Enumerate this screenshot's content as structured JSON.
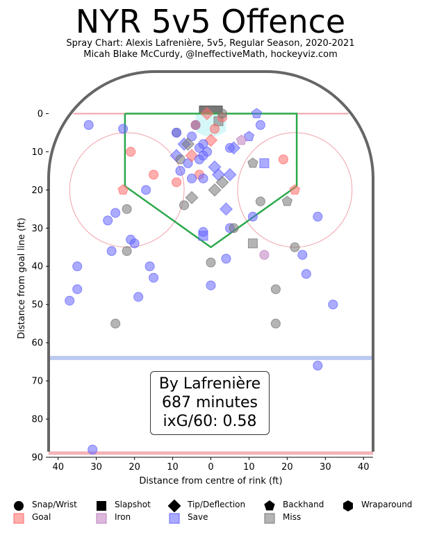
{
  "title": "NYR 5v5 Offence",
  "subtitle_1": "Spray Chart: Alexis Lafrenière, 5v5, Regular Season, 2020-2021",
  "subtitle_2": "Micah Blake McCurdy, @IneffectiveMath, hockeyviz.com",
  "annotation": {
    "line1": "By Lafrenière",
    "line2": "687 minutes",
    "line3": "ixG/60: 0.58"
  },
  "legend": {
    "shapes": [
      {
        "label": "Snap/Wrist",
        "shape": "circle"
      },
      {
        "label": "Slapshot",
        "shape": "square"
      },
      {
        "label": "Tip/Deflection",
        "shape": "diamond"
      },
      {
        "label": "Backhand",
        "shape": "pentagon"
      },
      {
        "label": "Wraparound",
        "shape": "hexagon"
      }
    ],
    "outcomes": [
      {
        "label": "Goal",
        "color": "#ff6b6b"
      },
      {
        "label": "Iron",
        "color": "#c080c0"
      },
      {
        "label": "Save",
        "color": "#6666ff"
      },
      {
        "label": "Miss",
        "color": "#777777"
      }
    ]
  },
  "colors": {
    "goal": "#ff6b6b",
    "iron": "#c080c0",
    "save": "#6666ff",
    "miss": "#777777",
    "slot": "#2aa84a",
    "boards": "#666666",
    "blue_line": "#aabbee",
    "red_line": "#f0a0a8",
    "crease": "#ccf5f5"
  },
  "chart_data": {
    "type": "scatter",
    "xlabel": "Distance from centre of rink (ft)",
    "ylabel": "Distance from goal line (ft)",
    "xlim": [
      42.5,
      -42.5
    ],
    "ylim": [
      90,
      -11
    ],
    "xticks": [
      40,
      30,
      20,
      10,
      0,
      10,
      20,
      30,
      40
    ],
    "yticks": [
      0,
      10,
      20,
      30,
      40,
      50,
      60,
      70,
      80,
      90
    ],
    "points": [
      {
        "x": -2,
        "y": 2,
        "shape": "square",
        "outcome": "miss"
      },
      {
        "x": 1,
        "y": 0,
        "shape": "diamond",
        "outcome": "goal"
      },
      {
        "x": -3,
        "y": 1,
        "shape": "circle",
        "outcome": "goal"
      },
      {
        "x": -1,
        "y": 4,
        "shape": "circle",
        "outcome": "goal"
      },
      {
        "x": 4,
        "y": 3,
        "shape": "circle",
        "outcome": "goal"
      },
      {
        "x": 4,
        "y": 3,
        "shape": "circle",
        "outcome": "miss"
      },
      {
        "x": -3,
        "y": 0,
        "shape": "circle",
        "outcome": "miss"
      },
      {
        "x": -12,
        "y": 0,
        "shape": "pentagon",
        "outcome": "save"
      },
      {
        "x": 32,
        "y": 3,
        "shape": "circle",
        "outcome": "save"
      },
      {
        "x": 23,
        "y": 4,
        "shape": "circle",
        "outcome": "save"
      },
      {
        "x": -13,
        "y": 3,
        "shape": "circle",
        "outcome": "save"
      },
      {
        "x": 9,
        "y": 5,
        "shape": "circle",
        "outcome": "miss"
      },
      {
        "x": 9,
        "y": 5,
        "shape": "circle",
        "outcome": "save"
      },
      {
        "x": 5,
        "y": 6,
        "shape": "circle",
        "outcome": "save"
      },
      {
        "x": 4,
        "y": 3,
        "shape": "circle",
        "outcome": "iron"
      },
      {
        "x": -10,
        "y": 6,
        "shape": "pentagon",
        "outcome": "save"
      },
      {
        "x": -8,
        "y": 7,
        "shape": "pentagon",
        "outcome": "iron"
      },
      {
        "x": 0,
        "y": 7,
        "shape": "diamond",
        "outcome": "goal"
      },
      {
        "x": 7,
        "y": 8,
        "shape": "diamond",
        "outcome": "save"
      },
      {
        "x": 6,
        "y": 8,
        "shape": "diamond",
        "outcome": "miss"
      },
      {
        "x": 2,
        "y": 8,
        "shape": "circle",
        "outcome": "save"
      },
      {
        "x": 3,
        "y": 9,
        "shape": "circle",
        "outcome": "save"
      },
      {
        "x": 1,
        "y": 10,
        "shape": "circle",
        "outcome": "save"
      },
      {
        "x": -5,
        "y": 9,
        "shape": "circle",
        "outcome": "save"
      },
      {
        "x": -6,
        "y": 9,
        "shape": "diamond",
        "outcome": "save"
      },
      {
        "x": -14,
        "y": 13,
        "shape": "square",
        "outcome": "save"
      },
      {
        "x": 21,
        "y": 10,
        "shape": "circle",
        "outcome": "goal"
      },
      {
        "x": 9,
        "y": 11,
        "shape": "diamond",
        "outcome": "save"
      },
      {
        "x": 8,
        "y": 12,
        "shape": "circle",
        "outcome": "miss"
      },
      {
        "x": 6,
        "y": 13,
        "shape": "circle",
        "outcome": "save"
      },
      {
        "x": 5,
        "y": 11,
        "shape": "diamond",
        "outcome": "goal"
      },
      {
        "x": 3,
        "y": 12,
        "shape": "circle",
        "outcome": "save"
      },
      {
        "x": 2,
        "y": 11,
        "shape": "circle",
        "outcome": "save"
      },
      {
        "x": -11,
        "y": 13,
        "shape": "pentagon",
        "outcome": "miss"
      },
      {
        "x": -19,
        "y": 12,
        "shape": "circle",
        "outcome": "goal"
      },
      {
        "x": 15,
        "y": 16,
        "shape": "circle",
        "outcome": "goal"
      },
      {
        "x": 8,
        "y": 15,
        "shape": "circle",
        "outcome": "save"
      },
      {
        "x": 9,
        "y": 18,
        "shape": "circle",
        "outcome": "goal"
      },
      {
        "x": 3,
        "y": 16,
        "shape": "circle",
        "outcome": "goal"
      },
      {
        "x": 5,
        "y": 17,
        "shape": "circle",
        "outcome": "save"
      },
      {
        "x": 2,
        "y": 17,
        "shape": "circle",
        "outcome": "save"
      },
      {
        "x": -1,
        "y": 14,
        "shape": "diamond",
        "outcome": "save"
      },
      {
        "x": -2,
        "y": 16,
        "shape": "diamond",
        "outcome": "save"
      },
      {
        "x": -5,
        "y": 16,
        "shape": "diamond",
        "outcome": "save"
      },
      {
        "x": -3,
        "y": 18,
        "shape": "diamond",
        "outcome": "miss"
      },
      {
        "x": -1,
        "y": 20,
        "shape": "diamond",
        "outcome": "miss"
      },
      {
        "x": 17,
        "y": 20,
        "shape": "circle",
        "outcome": "save"
      },
      {
        "x": 23,
        "y": 20,
        "shape": "pentagon",
        "outcome": "goal"
      },
      {
        "x": -22,
        "y": 20,
        "shape": "pentagon",
        "outcome": "goal"
      },
      {
        "x": -20,
        "y": 23,
        "shape": "pentagon",
        "outcome": "miss"
      },
      {
        "x": 5,
        "y": 22,
        "shape": "diamond",
        "outcome": "miss"
      },
      {
        "x": 7,
        "y": 24,
        "shape": "circle",
        "outcome": "miss"
      },
      {
        "x": -13,
        "y": 23,
        "shape": "circle",
        "outcome": "miss"
      },
      {
        "x": 22,
        "y": 25,
        "shape": "circle",
        "outcome": "miss"
      },
      {
        "x": 25,
        "y": 26,
        "shape": "circle",
        "outcome": "save"
      },
      {
        "x": -4,
        "y": 25,
        "shape": "diamond",
        "outcome": "save"
      },
      {
        "x": 27,
        "y": 28,
        "shape": "circle",
        "outcome": "save"
      },
      {
        "x": -11,
        "y": 27,
        "shape": "circle",
        "outcome": "save"
      },
      {
        "x": -28,
        "y": 27,
        "shape": "circle",
        "outcome": "save"
      },
      {
        "x": 2,
        "y": 31,
        "shape": "circle",
        "outcome": "save"
      },
      {
        "x": 2,
        "y": 32,
        "shape": "square",
        "outcome": "save"
      },
      {
        "x": -5,
        "y": 30,
        "shape": "circle",
        "outcome": "save"
      },
      {
        "x": -6,
        "y": 30,
        "shape": "circle",
        "outcome": "miss"
      },
      {
        "x": 21,
        "y": 33,
        "shape": "circle",
        "outcome": "save"
      },
      {
        "x": 20,
        "y": 34,
        "shape": "circle",
        "outcome": "save"
      },
      {
        "x": -11,
        "y": 34,
        "shape": "square",
        "outcome": "miss"
      },
      {
        "x": 26,
        "y": 36,
        "shape": "circle",
        "outcome": "save"
      },
      {
        "x": 22,
        "y": 36,
        "shape": "circle",
        "outcome": "miss"
      },
      {
        "x": -22,
        "y": 35,
        "shape": "circle",
        "outcome": "miss"
      },
      {
        "x": -14,
        "y": 37,
        "shape": "circle",
        "outcome": "iron"
      },
      {
        "x": -24,
        "y": 37,
        "shape": "circle",
        "outcome": "save"
      },
      {
        "x": -4,
        "y": 38,
        "shape": "circle",
        "outcome": "save"
      },
      {
        "x": 0,
        "y": 39,
        "shape": "circle",
        "outcome": "miss"
      },
      {
        "x": 35,
        "y": 40,
        "shape": "circle",
        "outcome": "save"
      },
      {
        "x": 16,
        "y": 40,
        "shape": "circle",
        "outcome": "save"
      },
      {
        "x": 15,
        "y": 43,
        "shape": "circle",
        "outcome": "save"
      },
      {
        "x": -25,
        "y": 42,
        "shape": "circle",
        "outcome": "save"
      },
      {
        "x": 0,
        "y": 45,
        "shape": "circle",
        "outcome": "save"
      },
      {
        "x": 35,
        "y": 46,
        "shape": "circle",
        "outcome": "save"
      },
      {
        "x": -17,
        "y": 46,
        "shape": "circle",
        "outcome": "miss"
      },
      {
        "x": 19,
        "y": 48,
        "shape": "circle",
        "outcome": "save"
      },
      {
        "x": 37,
        "y": 49,
        "shape": "circle",
        "outcome": "save"
      },
      {
        "x": -32,
        "y": 50,
        "shape": "circle",
        "outcome": "save"
      },
      {
        "x": 25,
        "y": 55,
        "shape": "circle",
        "outcome": "miss"
      },
      {
        "x": -17,
        "y": 55,
        "shape": "circle",
        "outcome": "miss"
      },
      {
        "x": -28,
        "y": 66,
        "shape": "circle",
        "outcome": "save"
      },
      {
        "x": 31,
        "y": 88,
        "shape": "circle",
        "outcome": "save"
      }
    ]
  }
}
